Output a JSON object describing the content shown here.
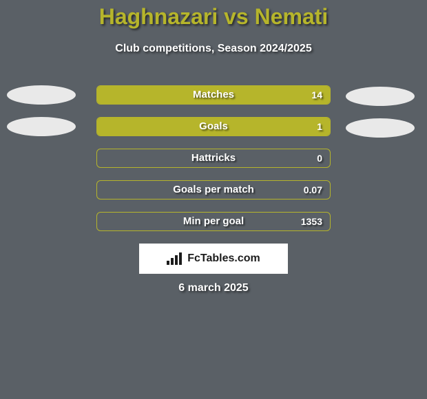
{
  "background_color": "#5a6066",
  "text_color": "#ffffff",
  "title": "Haghnazari vs Nemati",
  "title_color": "#b6b52b",
  "title_fontsize": 32,
  "subtitle": "Club competitions, Season 2024/2025",
  "subtitle_fontsize": 16,
  "bar_track_border_color": "#b6b52b",
  "bar_fill_color": "#b6b52b",
  "left_oval_color": "#e9e9e9",
  "right_oval_color": "#e9e9e9",
  "stats": [
    {
      "label": "Matches",
      "left_val": "",
      "right_val": "14",
      "left_pct": 0,
      "right_pct": 100,
      "show_left_oval": true,
      "show_right_oval": true
    },
    {
      "label": "Goals",
      "left_val": "",
      "right_val": "1",
      "left_pct": 0,
      "right_pct": 100,
      "show_left_oval": true,
      "show_right_oval": true
    },
    {
      "label": "Hattricks",
      "left_val": "",
      "right_val": "0",
      "left_pct": 0,
      "right_pct": 0,
      "show_left_oval": false,
      "show_right_oval": false
    },
    {
      "label": "Goals per match",
      "left_val": "",
      "right_val": "0.07",
      "left_pct": 0,
      "right_pct": 0,
      "show_left_oval": false,
      "show_right_oval": false
    },
    {
      "label": "Min per goal",
      "left_val": "",
      "right_val": "1353",
      "left_pct": 0,
      "right_pct": 0,
      "show_left_oval": false,
      "show_right_oval": false
    }
  ],
  "footer_brand": "FcTables.com",
  "date": "6 march 2025"
}
